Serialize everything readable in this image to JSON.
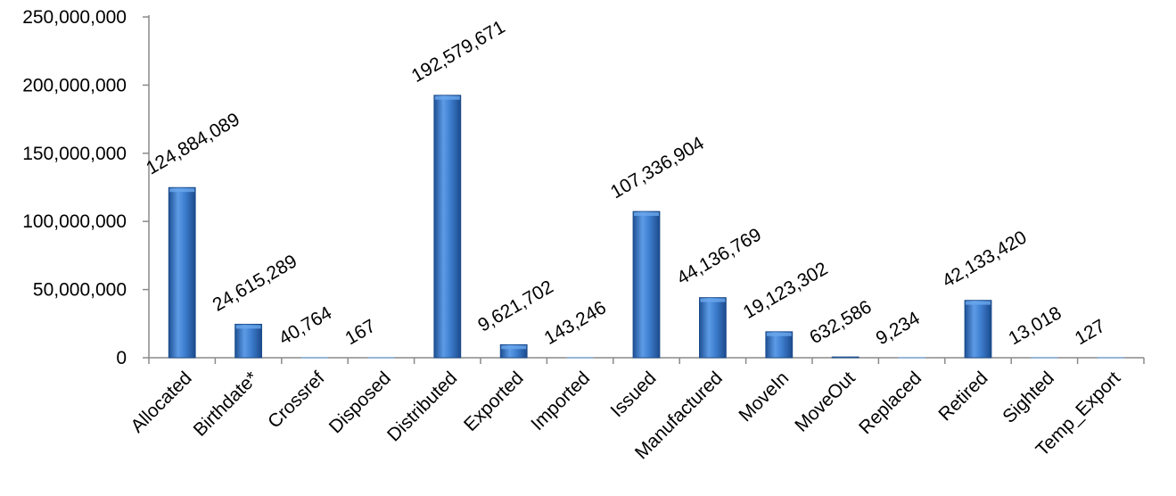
{
  "chart_data": {
    "type": "bar",
    "categories": [
      "Allocated",
      "Birthdate*",
      "Crossref",
      "Disposed",
      "Distributed",
      "Exported",
      "Imported",
      "Issued",
      "Manufactured",
      "MoveIn",
      "MoveOut",
      "Replaced",
      "Retired",
      "Sighted",
      "Temp_Export"
    ],
    "values": [
      124884089,
      24615289,
      40764,
      167,
      192579671,
      9621702,
      143246,
      107336904,
      44136769,
      19123302,
      632586,
      9234,
      42133420,
      13018,
      127
    ],
    "value_labels": [
      "124,884,089",
      "24,615,289",
      "40,764",
      "167",
      "192,579,671",
      "9,621,702",
      "143,246",
      "107,336,904",
      "44,136,769",
      "19,123,302",
      "632,586",
      "9,234",
      "42,133,420",
      "13,018",
      "127"
    ],
    "y_ticks": [
      0,
      50000000,
      100000000,
      150000000,
      200000000,
      250000000
    ],
    "y_tick_labels": [
      "0",
      "50,000,000",
      "100,000,000",
      "150,000,000",
      "200,000,000",
      "250,000,000"
    ],
    "ylim": [
      0,
      250000000
    ],
    "title": "",
    "xlabel": "",
    "ylabel": "",
    "grid": false,
    "legend": false,
    "bar_color": "#2f6fbd",
    "bar_highlight": "#6aa8ec",
    "axis_color": "#8a8a8a"
  }
}
